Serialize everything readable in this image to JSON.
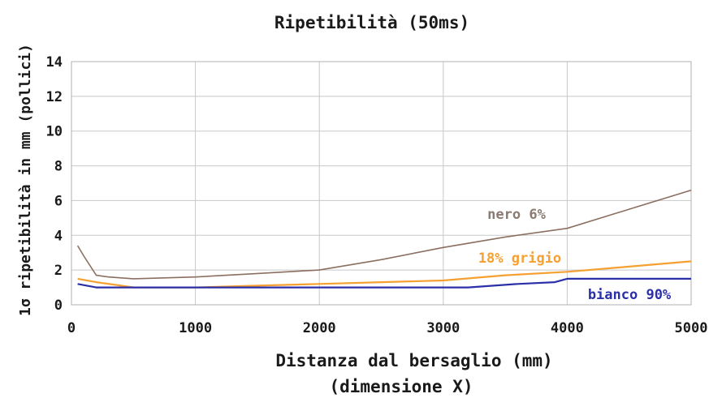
{
  "chart_data": {
    "type": "line",
    "title": "Ripetibilità (50ms)",
    "xlabel": "Distanza dal bersaglio (mm)",
    "xlabel2": "(dimensione X)",
    "ylabel": "1σ ripetibilità in mm (pollici)",
    "xlim": [
      0,
      5000
    ],
    "ylim": [
      0,
      14
    ],
    "xticks": [
      0,
      1000,
      2000,
      3000,
      4000,
      5000
    ],
    "yticks": [
      0,
      2,
      4,
      6,
      8,
      10,
      12,
      14
    ],
    "grid": true,
    "series": [
      {
        "name": "nero 6%",
        "color": "#8b6f60",
        "label_color": "#8a7a72",
        "x": [
          50,
          100,
          200,
          300,
          500,
          1000,
          1500,
          2000,
          2500,
          3000,
          3500,
          4000,
          4500,
          5000
        ],
        "y": [
          3.4,
          2.8,
          1.7,
          1.6,
          1.5,
          1.6,
          1.8,
          2.0,
          2.6,
          3.3,
          3.9,
          4.4,
          5.5,
          6.6
        ]
      },
      {
        "name": "18% grigio",
        "color": "#f5a030",
        "label_color": "#f5a030",
        "x": [
          50,
          200,
          400,
          500,
          1000,
          1500,
          2000,
          2500,
          3000,
          3500,
          4000,
          4500,
          5000
        ],
        "y": [
          1.5,
          1.3,
          1.1,
          1.0,
          1.0,
          1.1,
          1.2,
          1.3,
          1.4,
          1.7,
          1.9,
          2.2,
          2.5
        ]
      },
      {
        "name": "bianco 90%",
        "color": "#2b2fa8",
        "label_color": "#2b2fa8",
        "x": [
          50,
          200,
          400,
          500,
          1000,
          1500,
          2000,
          2500,
          3000,
          3200,
          3600,
          3900,
          4000,
          4500,
          5000
        ],
        "y": [
          1.2,
          1.0,
          1.0,
          1.0,
          1.0,
          1.0,
          1.0,
          1.0,
          1.0,
          1.0,
          1.2,
          1.3,
          1.5,
          1.5,
          1.5
        ]
      }
    ]
  }
}
